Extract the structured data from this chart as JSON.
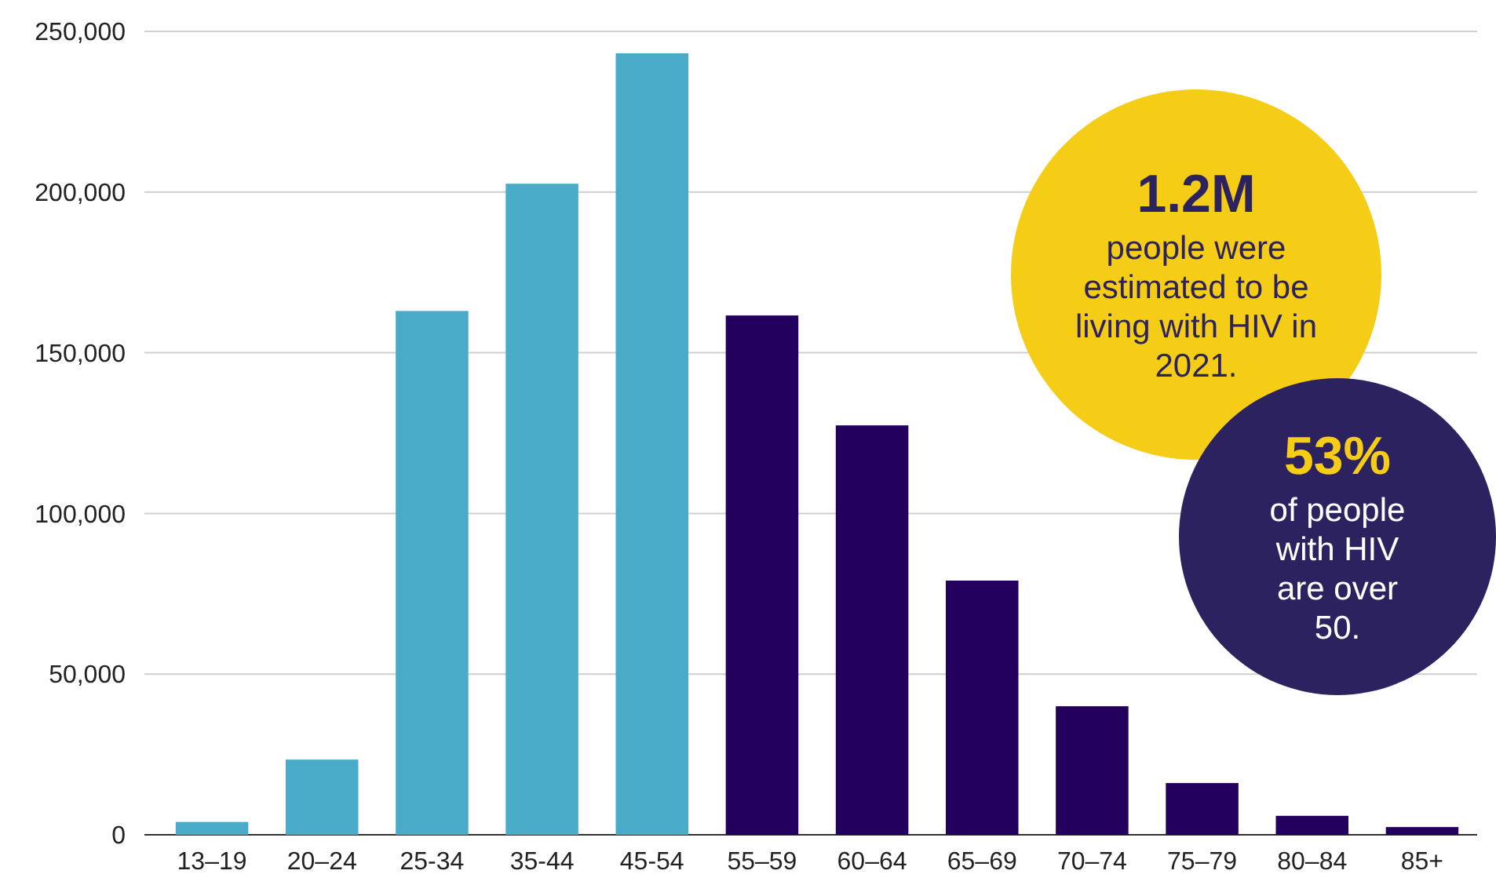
{
  "chart_data": {
    "type": "bar",
    "categories": [
      "13–19",
      "20–24",
      "25-34",
      "35-44",
      "45-54",
      "55–59",
      "60–64",
      "65–69",
      "70–74",
      "75–79",
      "80–84",
      "85+"
    ],
    "values": [
      4000,
      23400,
      163000,
      202600,
      243200,
      161600,
      127400,
      79100,
      40000,
      16100,
      5900,
      2400
    ],
    "colors": [
      "#4aabc8",
      "#4aabc8",
      "#4aabc8",
      "#4aabc8",
      "#4aabc8",
      "#24005e",
      "#24005e",
      "#24005e",
      "#24005e",
      "#24005e",
      "#24005e",
      "#24005e"
    ],
    "ylim": [
      0,
      250000
    ],
    "yticks": [
      {
        "value": 0,
        "label": "0"
      },
      {
        "value": 50000,
        "label": "50,000"
      },
      {
        "value": 100000,
        "label": "100,000"
      },
      {
        "value": 150000,
        "label": "150,000"
      },
      {
        "value": 200000,
        "label": "200,000"
      },
      {
        "value": 250000,
        "label": "250,000"
      }
    ],
    "grid": "y",
    "annotations": [
      "1.2M",
      "people were estimated to be living with HIV in 2021.",
      "53%",
      "of people with HIV are over 50."
    ]
  }
}
